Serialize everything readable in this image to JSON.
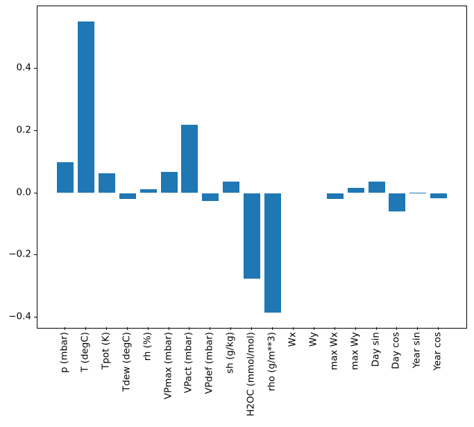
{
  "chart_data": {
    "type": "bar",
    "title": "",
    "xlabel": "",
    "ylabel": "",
    "categories": [
      "p (mbar)",
      "T (degC)",
      "Tpot (K)",
      "Tdew (degC)",
      "rh (%)",
      "VPmax (mbar)",
      "VPact (mbar)",
      "VPdef (mbar)",
      "sh (g/kg)",
      "H2OC (mmol/mol)",
      "rho (g/m**3)",
      "Wx",
      "Wy",
      "max Wx",
      "max Wy",
      "Day sin",
      "Day cos",
      "Year sin",
      "Year cos"
    ],
    "values": [
      0.1,
      0.551,
      0.064,
      -0.02,
      0.013,
      0.068,
      0.219,
      -0.026,
      0.036,
      -0.276,
      -0.384,
      0.0,
      0.0,
      -0.019,
      0.016,
      0.036,
      -0.059,
      0.002,
      -0.016
    ],
    "bar_color": "#1f77b4",
    "axis_color": "#000000",
    "background_color": "#ffffff",
    "ylim": [
      -0.433,
      0.6
    ],
    "yticks": [
      {
        "value": 0.4,
        "label": "0.4"
      },
      {
        "value": 0.2,
        "label": "0.2"
      },
      {
        "value": 0.0,
        "label": "0.0"
      },
      {
        "value": -0.2,
        "label": "−0.2"
      },
      {
        "value": -0.4,
        "label": "−0.4"
      }
    ],
    "xtick_rotation": 90,
    "grid": false,
    "legend": false
  }
}
